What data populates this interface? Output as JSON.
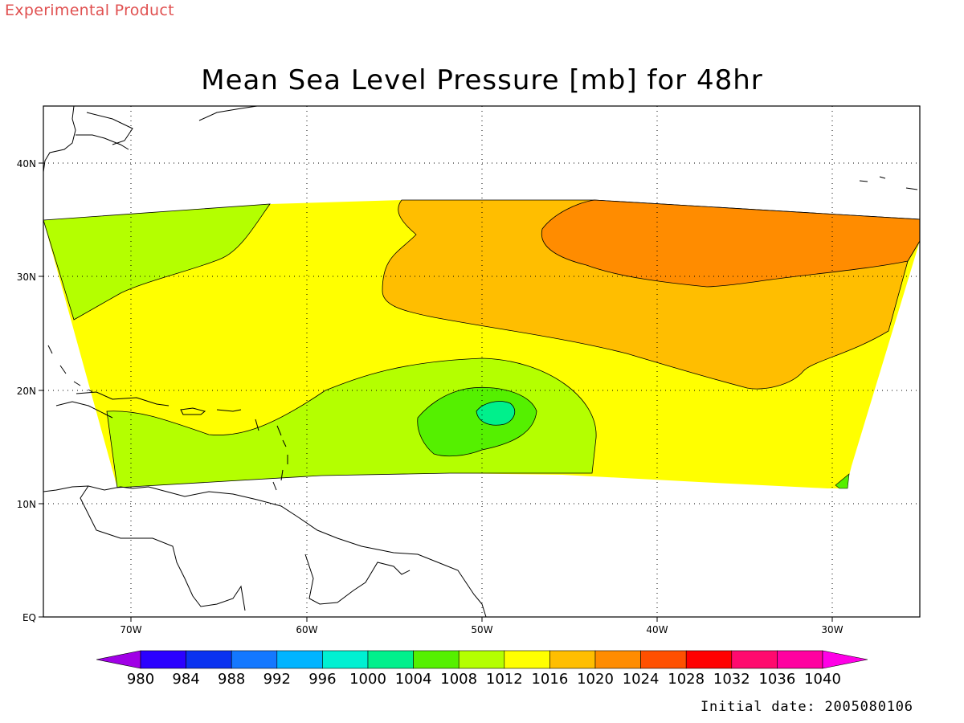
{
  "watermark": "Experimental Product",
  "title": "Mean Sea Level Pressure [mb] for 48hr",
  "initial_date": "Initial date: 2005080106",
  "map": {
    "lon_range": [
      -75,
      -25
    ],
    "lat_range": [
      0,
      45
    ],
    "lon_ticks": [
      {
        "value": -70,
        "label": "70W"
      },
      {
        "value": -60,
        "label": "60W"
      },
      {
        "value": -50,
        "label": "50W"
      },
      {
        "value": -40,
        "label": "40W"
      },
      {
        "value": -30,
        "label": "30W"
      }
    ],
    "lat_ticks": [
      {
        "value": 40,
        "label": "40N"
      },
      {
        "value": 30,
        "label": "30N"
      },
      {
        "value": 20,
        "label": "20N"
      },
      {
        "value": 10,
        "label": "10N"
      },
      {
        "value": 0,
        "label": "EQ"
      }
    ],
    "grid": "dotted"
  },
  "colorbar": {
    "labels": [
      "980",
      "984",
      "988",
      "992",
      "996",
      "1000",
      "1004",
      "1008",
      "1012",
      "1016",
      "1020",
      "1024",
      "1028",
      "1032",
      "1036",
      "1040"
    ],
    "colors": [
      "#a000e6",
      "#2b00ff",
      "#0a32f0",
      "#1478ff",
      "#00b4ff",
      "#00f0d2",
      "#00f08c",
      "#55f000",
      "#b4ff00",
      "#ffff00",
      "#ffbe00",
      "#ff8c00",
      "#ff5000",
      "#ff0000",
      "#ff0a6e",
      "#ff00a0",
      "#ff00e6"
    ]
  },
  "chart_data": {
    "type": "heatmap",
    "title": "Mean Sea Level Pressure [mb] for 48hr",
    "units": "mb",
    "field": "mean sea level pressure",
    "x_ticks": [
      "70W",
      "60W",
      "50W",
      "40W",
      "30W"
    ],
    "y_ticks": [
      "40N",
      "30N",
      "20N",
      "10N",
      "EQ"
    ],
    "xlim": [
      -75,
      -25
    ],
    "ylim": [
      0,
      45
    ],
    "contour_levels": [
      980,
      984,
      988,
      992,
      996,
      1000,
      1004,
      1008,
      1012,
      1016,
      1020,
      1024,
      1028,
      1032,
      1036,
      1040
    ],
    "features": [
      {
        "type": "low",
        "lon": -49,
        "lat": 18,
        "min_band": "1004-1008"
      },
      {
        "type": "high",
        "lon": -37,
        "lat": 33,
        "max_band": "1020-1024"
      }
    ],
    "initial_date": "2005080106"
  }
}
